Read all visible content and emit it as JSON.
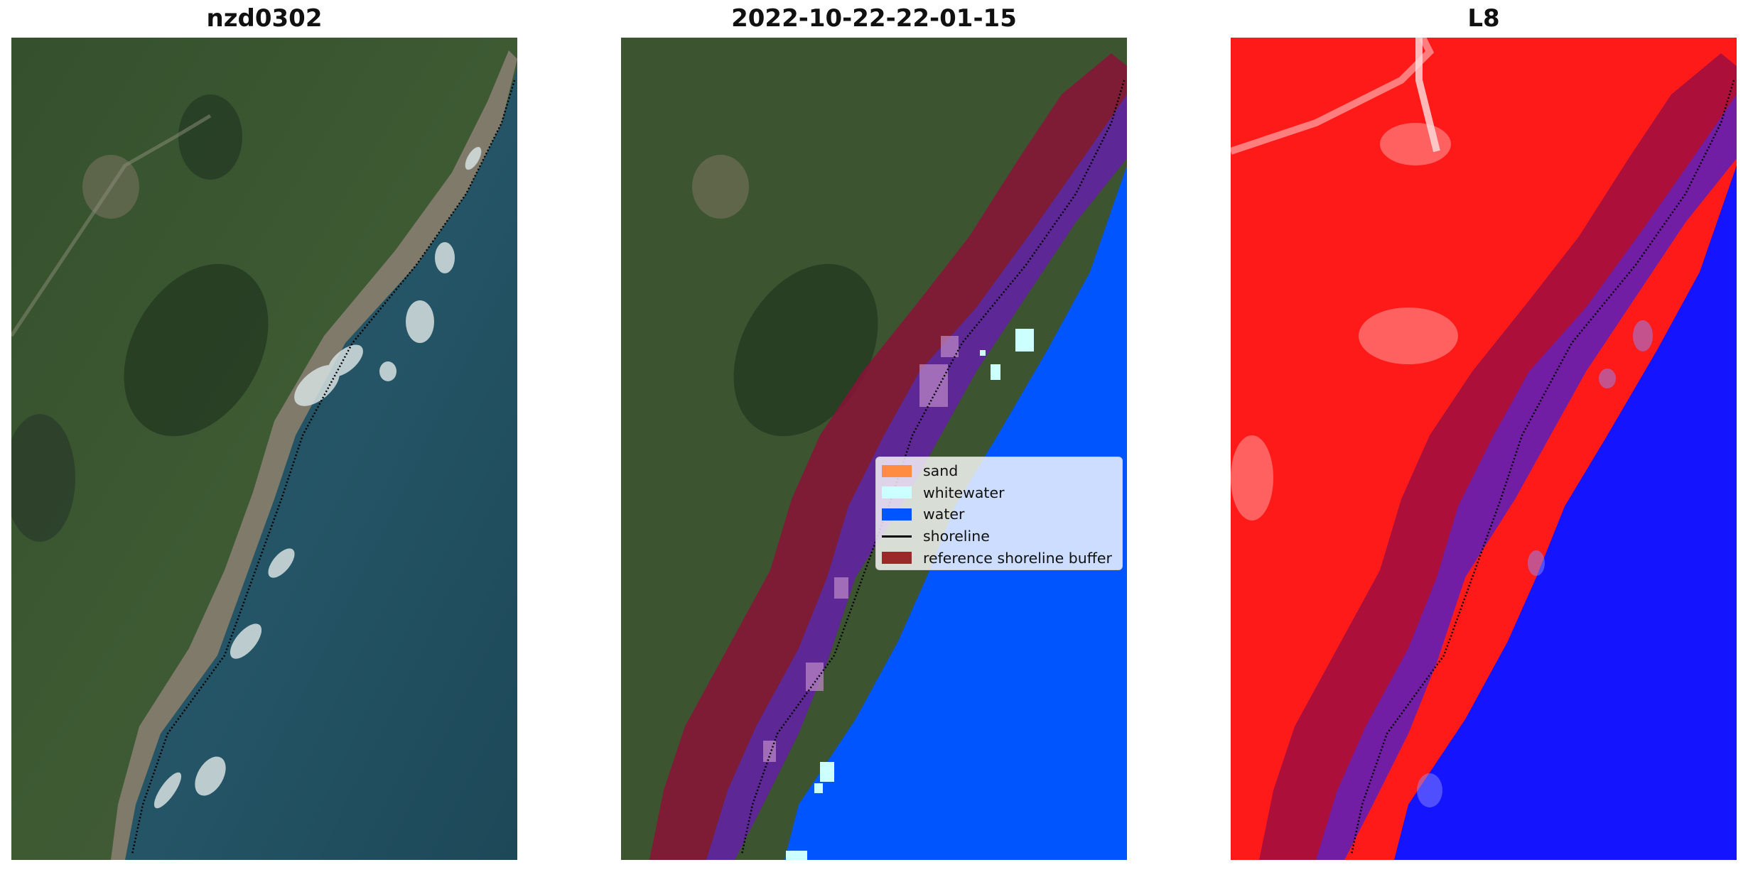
{
  "panels": [
    {
      "title": "nzd0302"
    },
    {
      "title": "2022-10-22-22-01-15"
    },
    {
      "title": "L8"
    }
  ],
  "legend": {
    "items": [
      {
        "label": "sand",
        "color": "#ff8c40"
      },
      {
        "label": "whitewater",
        "color": "#ccffff"
      },
      {
        "label": "water",
        "color": "#0055ff"
      },
      {
        "label": "shoreline",
        "color": "#000000"
      },
      {
        "label": "reference shoreline buffer",
        "color": "#9a2a2a"
      }
    ]
  },
  "colors": {
    "land": "#3c5530",
    "ocean": "#1f4a5c",
    "beach": "#7d7868",
    "buffer": "#9a1535",
    "water_class": "#0055ff",
    "whitewater_class": "#ccffff",
    "index_land": "#ff1a1a",
    "index_water": "#1414ff"
  }
}
